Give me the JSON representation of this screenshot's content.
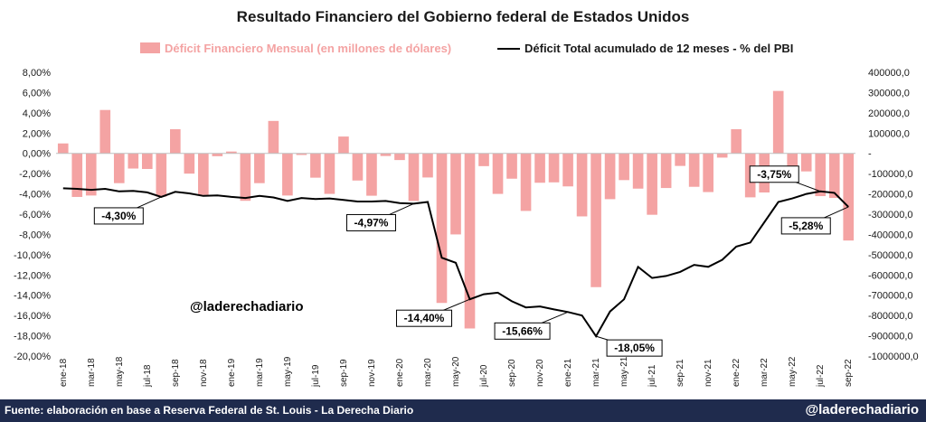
{
  "chart_data": {
    "type": "bar",
    "title": "Resultado Financiero del Gobierno federal de Estados Unidos",
    "watermark": "@laderechadiario",
    "categories": [
      "ene-18",
      "feb-18",
      "mar-18",
      "abr-18",
      "may-18",
      "jun-18",
      "jul-18",
      "ago-18",
      "sep-18",
      "oct-18",
      "nov-18",
      "dic-18",
      "ene-19",
      "feb-19",
      "mar-19",
      "abr-19",
      "may-19",
      "jun-19",
      "jul-19",
      "ago-19",
      "sep-19",
      "oct-19",
      "nov-19",
      "dic-19",
      "ene-20",
      "feb-20",
      "mar-20",
      "abr-20",
      "may-20",
      "jun-20",
      "jul-20",
      "ago-20",
      "sep-20",
      "oct-20",
      "nov-20",
      "dic-20",
      "ene-21",
      "feb-21",
      "mar-21",
      "abr-21",
      "may-21",
      "jun-21",
      "jul-21",
      "ago-21",
      "sep-21",
      "oct-21",
      "nov-21",
      "dic-21",
      "ene-22",
      "feb-22",
      "mar-22",
      "abr-22",
      "may-22",
      "jun-22",
      "jul-22",
      "ago-22",
      "sep-22"
    ],
    "x_tick_labels": [
      "ene-18",
      "mar-18",
      "may-18",
      "jul-18",
      "sep-18",
      "nov-18",
      "ene-19",
      "mar-19",
      "may-19",
      "jul-19",
      "sep-19",
      "nov-19",
      "ene-20",
      "mar-20",
      "may-20",
      "jul-20",
      "sep-20",
      "nov-20",
      "ene-21",
      "mar-21",
      "may-21",
      "jul-21",
      "sep-21",
      "nov-21",
      "ene-22",
      "mar-22",
      "may-22",
      "jul-22",
      "sep-22"
    ],
    "series": [
      {
        "name": "Déficit Financiero Mensual (en millones de dólares)",
        "type": "bar",
        "axis": "right",
        "color": "#f4a3a3",
        "values": [
          49000,
          -215000,
          -208000,
          214000,
          -147000,
          -75000,
          -77000,
          -214000,
          119000,
          -100000,
          -205000,
          -14000,
          9000,
          -234000,
          -147000,
          160000,
          -208000,
          -8000,
          -120000,
          -200000,
          83000,
          -134000,
          -209000,
          -13000,
          -33000,
          -235000,
          -119000,
          -738000,
          -400000,
          -864000,
          -63000,
          -200000,
          -125000,
          -284000,
          -145000,
          -143000,
          -163000,
          -311000,
          -660000,
          -226000,
          -132000,
          -174000,
          -303000,
          -171000,
          -62000,
          -165000,
          -191000,
          -21000,
          119000,
          -217000,
          -193000,
          308000,
          -66000,
          -89000,
          -211000,
          -220000,
          -430000
        ]
      },
      {
        "name": "Déficit Total acumulado de 12 meses - % del PBI",
        "type": "line",
        "axis": "left",
        "color": "#000000",
        "values": [
          -3.45,
          -3.5,
          -3.6,
          -3.5,
          -3.75,
          -3.7,
          -3.85,
          -4.3,
          -3.8,
          -3.95,
          -4.2,
          -4.15,
          -4.3,
          -4.4,
          -4.2,
          -4.35,
          -4.7,
          -4.4,
          -4.5,
          -4.45,
          -4.6,
          -4.75,
          -4.75,
          -4.7,
          -4.9,
          -4.97,
          -4.8,
          -10.3,
          -10.8,
          -14.4,
          -13.9,
          -13.75,
          -14.6,
          -15.2,
          -15.1,
          -15.4,
          -15.66,
          -16.0,
          -18.05,
          -15.6,
          -14.4,
          -11.2,
          -12.3,
          -12.1,
          -11.7,
          -11.0,
          -11.2,
          -10.5,
          -9.2,
          -8.8,
          -6.8,
          -4.8,
          -4.45,
          -4.0,
          -3.75,
          -3.9,
          -5.28
        ]
      }
    ],
    "left_axis": {
      "min": -20,
      "max": 8,
      "step": 2,
      "format": "percent_2dec",
      "tick_labels": [
        "-20,00%",
        "-18,00%",
        "-16,00%",
        "-14,00%",
        "-12,00%",
        "-10,00%",
        "-8,00%",
        "-6,00%",
        "-4,00%",
        "-2,00%",
        "0,00%",
        "2,00%",
        "4,00%",
        "6,00%",
        "8,00%"
      ]
    },
    "right_axis": {
      "min": -1000000,
      "max": 400000,
      "step": 100000,
      "tick_labels": [
        "-1000000,0",
        "-900000,0",
        "-800000,0",
        "-700000,0",
        "-600000,0",
        "-500000,0",
        "-400000,0",
        "-300000,0",
        "-200000,0",
        "-100000,0",
        "-",
        "100000,0",
        "200000,0",
        "300000,0",
        "400000,0"
      ]
    },
    "annotations": [
      {
        "label": "-4,30%",
        "index": 7,
        "value": -4.3,
        "placement": "below-left"
      },
      {
        "label": "-4,97%",
        "index": 25,
        "value": -4.97,
        "placement": "below-left"
      },
      {
        "label": "-14,40%",
        "index": 29,
        "value": -14.4,
        "placement": "below-left"
      },
      {
        "label": "-15,66%",
        "index": 36,
        "value": -15.66,
        "placement": "below-left"
      },
      {
        "label": "-18,05%",
        "index": 38,
        "value": -18.05,
        "placement": "right"
      },
      {
        "label": "-3,75%",
        "index": 54,
        "value": -3.75,
        "placement": "above-left"
      },
      {
        "label": "-5,28%",
        "index": 56,
        "value": -5.28,
        "placement": "below-left"
      }
    ],
    "legend_position": "top",
    "grid": false
  },
  "footer": {
    "source": "Fuente: elaboración en base a Reserva Federal de St. Louis - La Derecha Diario",
    "brand": "@laderechadiario"
  }
}
